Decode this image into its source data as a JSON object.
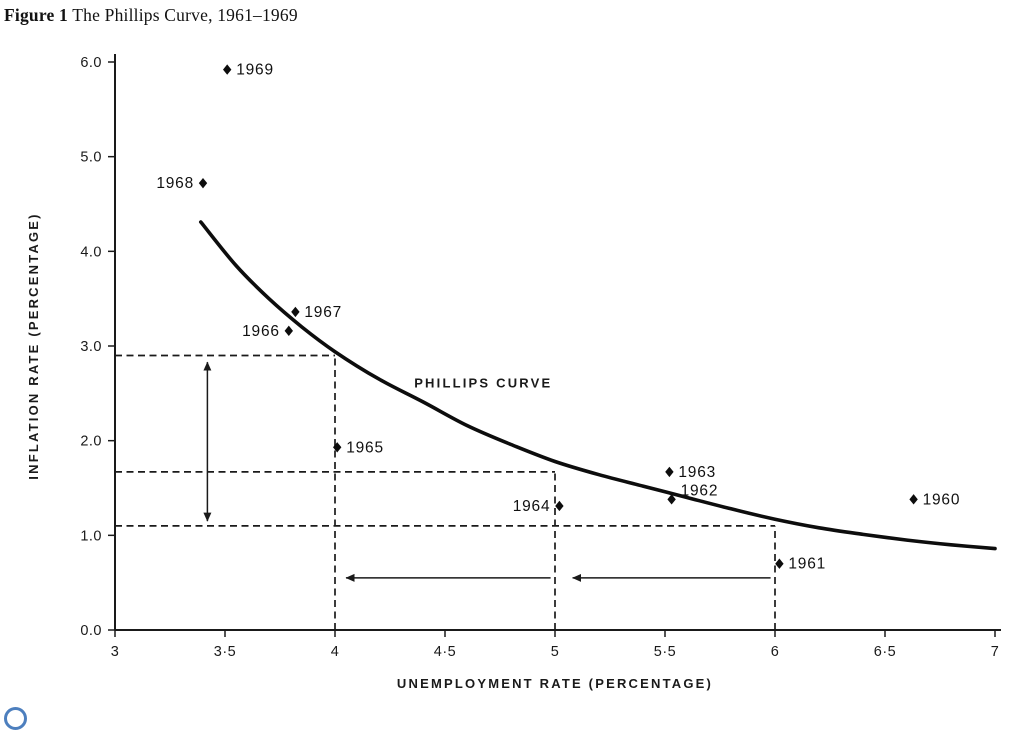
{
  "figure": {
    "label": "Figure 1",
    "title": "The Phillips Curve, 1961–1969"
  },
  "colors": {
    "ink": "#1a1a1a",
    "logo_blue": "#4d7fbe"
  },
  "chart_data": {
    "type": "scatter",
    "title": "Figure 1 The Phillips Curve, 1961–1969",
    "xlabel": "UNEMPLOYMENT RATE (PERCENTAGE)",
    "ylabel": "INFLATION RATE (PERCENTAGE)",
    "xlim": [
      3,
      7
    ],
    "ylim": [
      0,
      6
    ],
    "grid": false,
    "legend": false,
    "x_ticks": {
      "values": [
        3,
        3.5,
        4,
        4.5,
        5,
        5.5,
        6,
        6.5,
        7
      ],
      "labels": [
        "3",
        "3·5",
        "4",
        "4·5",
        "5",
        "5·5",
        "6",
        "6·5",
        "7"
      ]
    },
    "y_ticks": {
      "values": [
        0,
        1,
        2,
        3,
        4,
        5,
        6
      ],
      "labels": [
        "0.0",
        "1.0",
        "2.0",
        "3.0",
        "4.0",
        "5.0",
        "6.0"
      ]
    },
    "curve_label": {
      "text": "PHILLIPS CURVE",
      "x": 4.36,
      "y": 2.56
    },
    "points": [
      {
        "year": "1969",
        "x": 3.51,
        "y": 5.92,
        "label_side": "right"
      },
      {
        "year": "1968",
        "x": 3.4,
        "y": 4.72,
        "label_side": "left"
      },
      {
        "year": "1967",
        "x": 3.82,
        "y": 3.36,
        "label_side": "right"
      },
      {
        "year": "1966",
        "x": 3.79,
        "y": 3.16,
        "label_side": "left"
      },
      {
        "year": "1965",
        "x": 4.01,
        "y": 1.93,
        "label_side": "right"
      },
      {
        "year": "1964",
        "x": 5.02,
        "y": 1.31,
        "label_side": "left"
      },
      {
        "year": "1963",
        "x": 5.52,
        "y": 1.67,
        "label_side": "right"
      },
      {
        "year": "1962",
        "x": 5.53,
        "y": 1.38,
        "label_side": "right",
        "label_dy": -9
      },
      {
        "year": "1961",
        "x": 6.02,
        "y": 0.7,
        "label_side": "right"
      },
      {
        "year": "1960",
        "x": 6.63,
        "y": 1.38,
        "label_side": "right"
      }
    ],
    "curve": [
      [
        3.39,
        4.31
      ],
      [
        3.55,
        3.85
      ],
      [
        3.7,
        3.5
      ],
      [
        3.85,
        3.2
      ],
      [
        4.0,
        2.94
      ],
      [
        4.2,
        2.65
      ],
      [
        4.4,
        2.41
      ],
      [
        4.6,
        2.16
      ],
      [
        4.8,
        1.96
      ],
      [
        5.0,
        1.78
      ],
      [
        5.2,
        1.64
      ],
      [
        5.4,
        1.52
      ],
      [
        5.6,
        1.4
      ],
      [
        5.8,
        1.28
      ],
      [
        6.0,
        1.17
      ],
      [
        6.2,
        1.08
      ],
      [
        6.4,
        1.01
      ],
      [
        6.6,
        0.95
      ],
      [
        6.8,
        0.9
      ],
      [
        7.0,
        0.86
      ]
    ],
    "guides": [
      {
        "o": "h",
        "y": 2.9,
        "x1": 3,
        "x2": 4
      },
      {
        "o": "v",
        "x": 4,
        "y1": 0,
        "y2": 2.9
      },
      {
        "o": "h",
        "y": 1.67,
        "x1": 3,
        "x2": 5
      },
      {
        "o": "v",
        "x": 5,
        "y1": 0,
        "y2": 1.67
      },
      {
        "o": "h",
        "y": 1.1,
        "x1": 3,
        "x2": 6
      },
      {
        "o": "v",
        "x": 6,
        "y1": 0,
        "y2": 1.1
      }
    ],
    "arrows": [
      {
        "x1": 3.42,
        "y1": 1.15,
        "x2": 3.42,
        "y2": 2.83,
        "heads": "both"
      },
      {
        "x1": 4.98,
        "y1": 0.55,
        "x2": 4.05,
        "y2": 0.55,
        "heads": "end"
      },
      {
        "x1": 5.98,
        "y1": 0.55,
        "x2": 5.08,
        "y2": 0.55,
        "heads": "end"
      }
    ]
  }
}
